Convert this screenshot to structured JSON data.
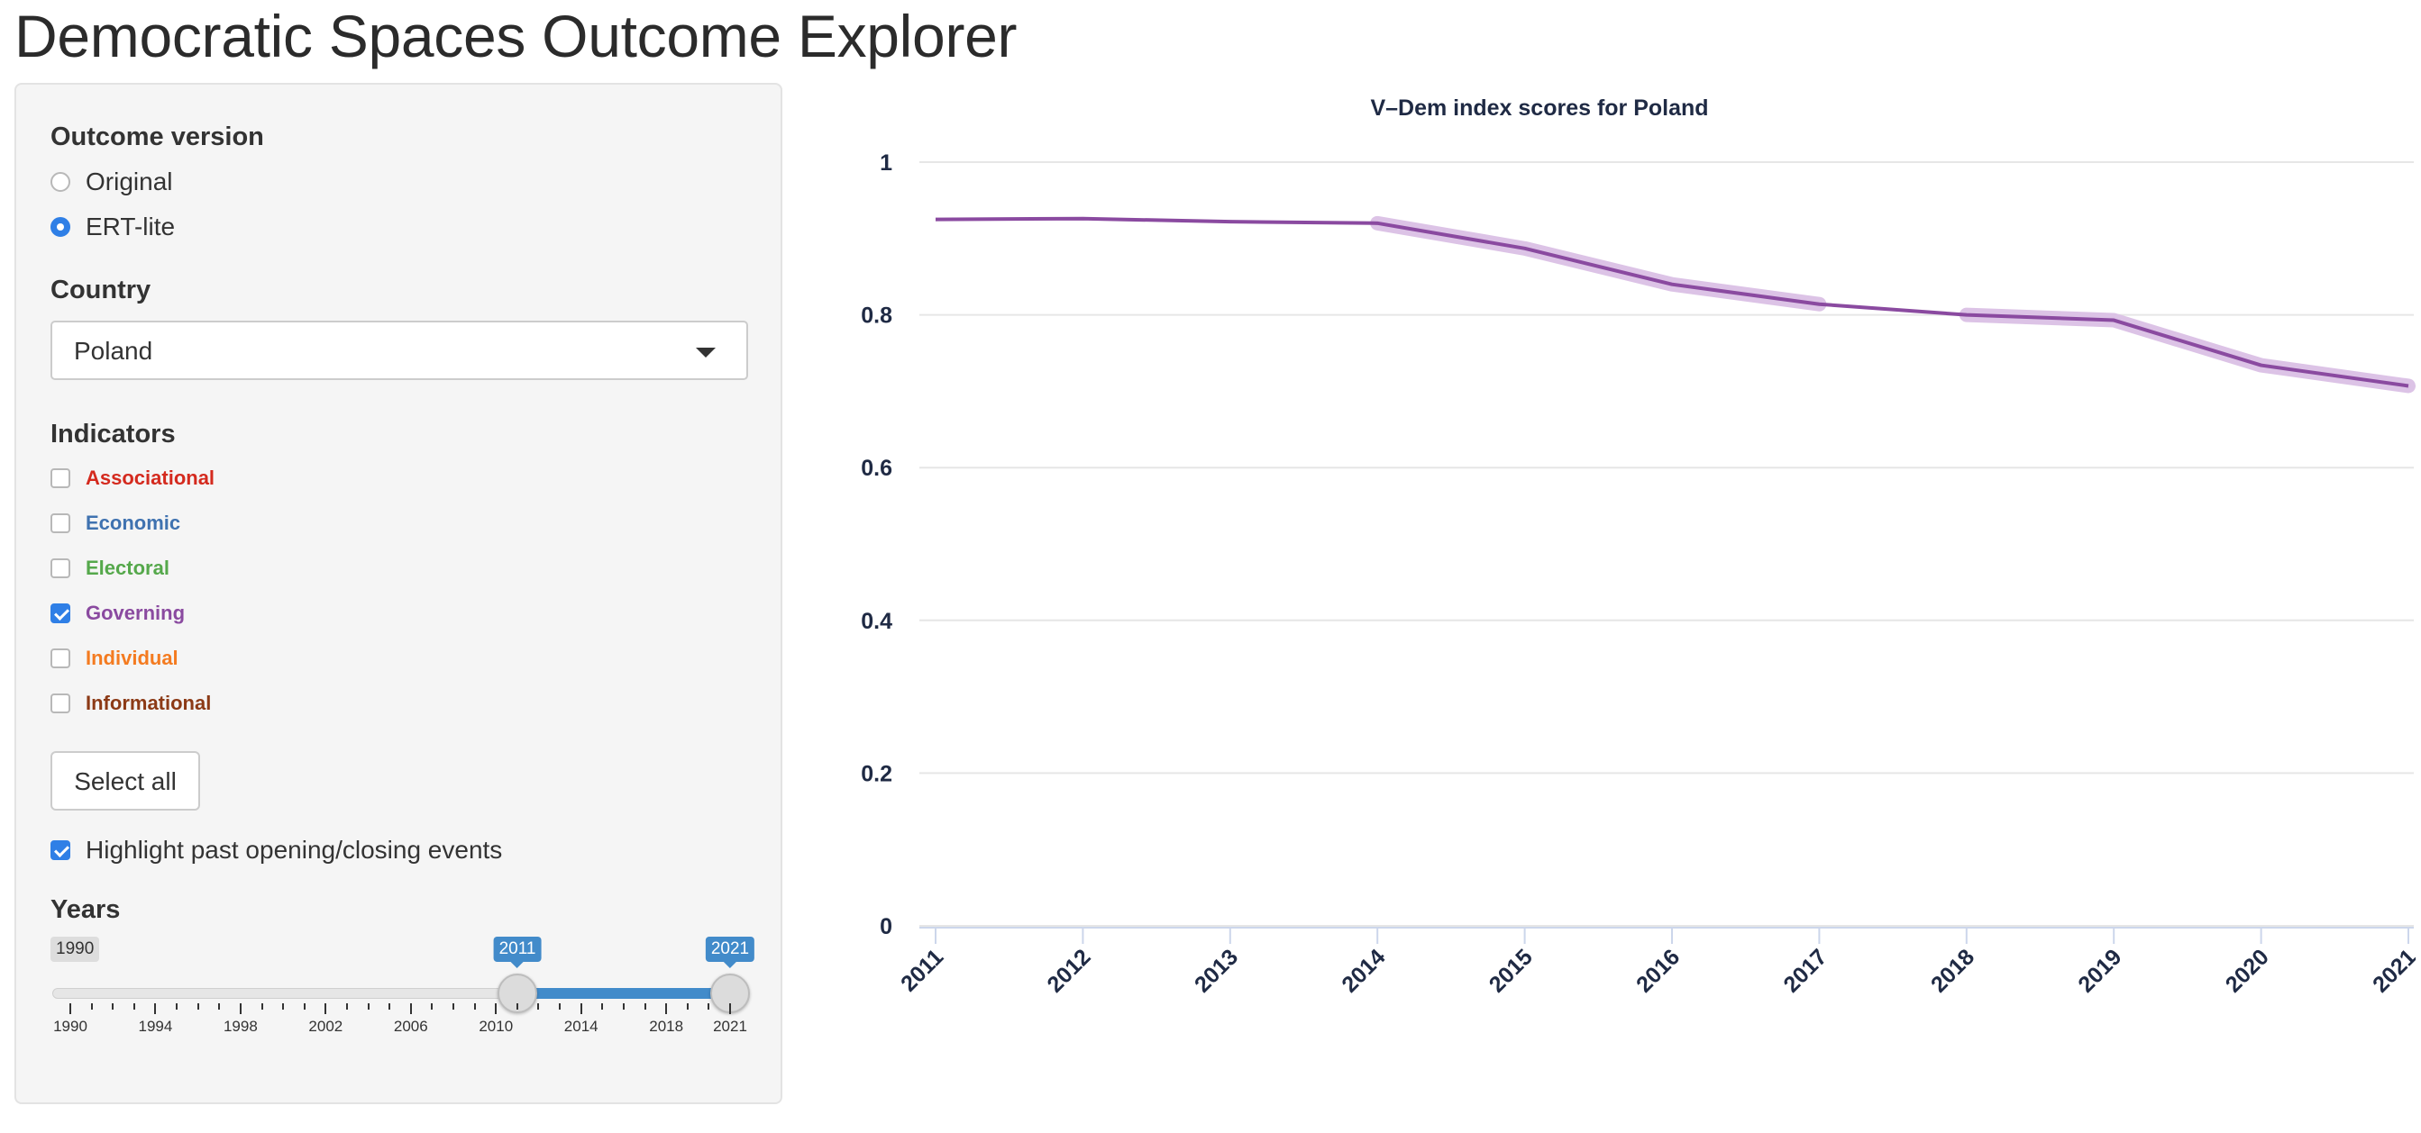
{
  "app": {
    "title": "Democratic Spaces Outcome Explorer"
  },
  "sidebar": {
    "outcome_version": {
      "label": "Outcome version",
      "options": [
        {
          "label": "Original",
          "checked": false
        },
        {
          "label": "ERT-lite",
          "checked": true
        }
      ]
    },
    "country": {
      "label": "Country",
      "selected": "Poland"
    },
    "indicators": {
      "label": "Indicators",
      "items": [
        {
          "label": "Associational",
          "checked": false,
          "color": "#d42a1e"
        },
        {
          "label": "Economic",
          "checked": false,
          "color": "#3f72b0"
        },
        {
          "label": "Electoral",
          "checked": false,
          "color": "#55a84b"
        },
        {
          "label": "Governing",
          "checked": true,
          "color": "#8a4aa0"
        },
        {
          "label": "Individual",
          "checked": false,
          "color": "#f47b20"
        },
        {
          "label": "Informational",
          "checked": false,
          "color": "#8c3a16"
        }
      ]
    },
    "select_all_label": "Select all",
    "highlight": {
      "label": "Highlight past opening/closing events",
      "checked": true
    },
    "years": {
      "label": "Years",
      "min": 1990,
      "max": 2021,
      "min_label": "1990",
      "value_from": 2011,
      "value_to": 2021,
      "from_label": "2011",
      "to_label": "2021",
      "major_ticks": [
        1990,
        1994,
        1998,
        2002,
        2006,
        2010,
        2014,
        2018,
        2021
      ],
      "major_tick_labels": [
        "1990",
        "1994",
        "1998",
        "2002",
        "2006",
        "2010",
        "2014",
        "2018",
        "2021"
      ]
    }
  },
  "chart_data": {
    "type": "line",
    "title": "V–Dem index scores for Poland",
    "xlabel": "",
    "ylabel": "",
    "x": [
      2011,
      2012,
      2013,
      2014,
      2015,
      2016,
      2017,
      2018,
      2019,
      2020,
      2021
    ],
    "xticks": [
      "2011",
      "2012",
      "2013",
      "2014",
      "2015",
      "2016",
      "2017",
      "2018",
      "2019",
      "2020",
      "2021"
    ],
    "ylim": [
      0,
      1
    ],
    "yticks": [
      "0",
      "0.2",
      "0.4",
      "0.6",
      "0.8",
      "1"
    ],
    "ytick_values": [
      0,
      0.2,
      0.4,
      0.6,
      0.8,
      1
    ],
    "grid": "horizontal",
    "series": [
      {
        "values": [
          0.925,
          0.926,
          0.922,
          0.92,
          0.887,
          0.84,
          0.814,
          0.8,
          0.793,
          0.734,
          0.707
        ],
        "color": "#8a4aa0",
        "highlight_color": "#dcc3e6"
      }
    ],
    "highlighted_segments": [
      [
        2014,
        2017
      ],
      [
        2018,
        2021
      ]
    ]
  }
}
